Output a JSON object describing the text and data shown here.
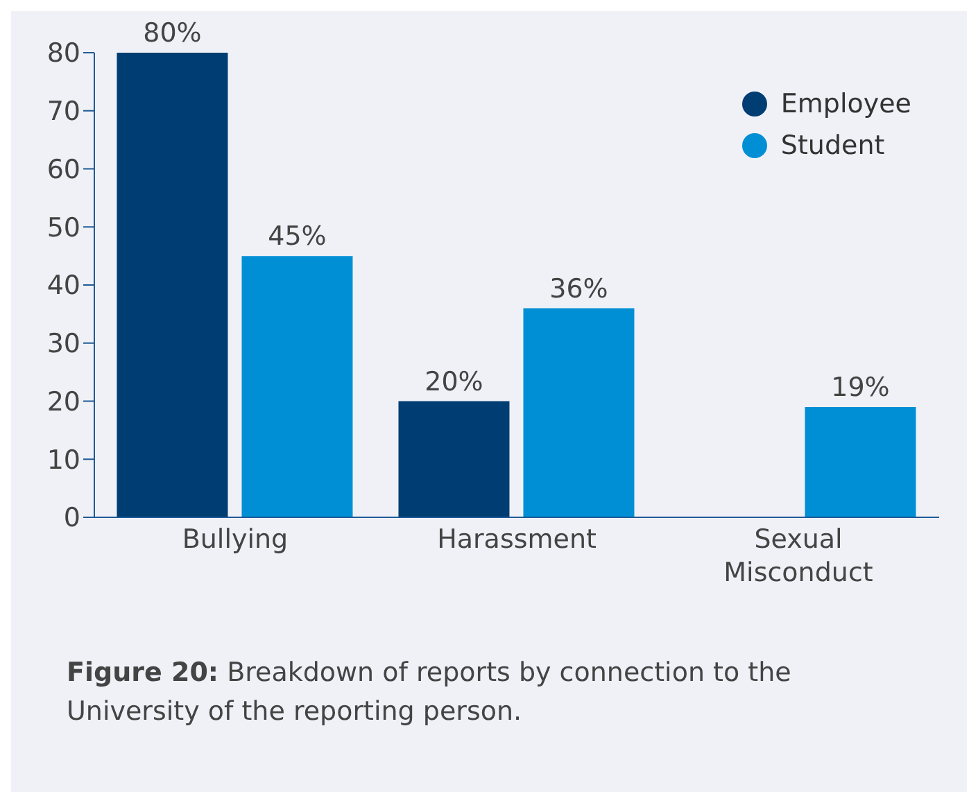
{
  "chart_data": {
    "type": "bar",
    "categories": [
      "Bullying",
      "Harassment",
      "Sexual Misconduct"
    ],
    "series": [
      {
        "name": "Employee",
        "color": "#003d73",
        "values": [
          80,
          20,
          null
        ],
        "value_labels": [
          "80%",
          "20%",
          null
        ]
      },
      {
        "name": "Student",
        "color": "#008fd5",
        "values": [
          45,
          36,
          19
        ],
        "value_labels": [
          "45%",
          "36%",
          "19%"
        ]
      }
    ],
    "ylim": [
      0,
      80
    ],
    "yticks": [
      0,
      10,
      20,
      30,
      40,
      50,
      60,
      70,
      80
    ],
    "legend": "top right",
    "annotations": [
      "Figure 20: Breakdown of reports by connection to the University of the reporting person."
    ]
  }
}
